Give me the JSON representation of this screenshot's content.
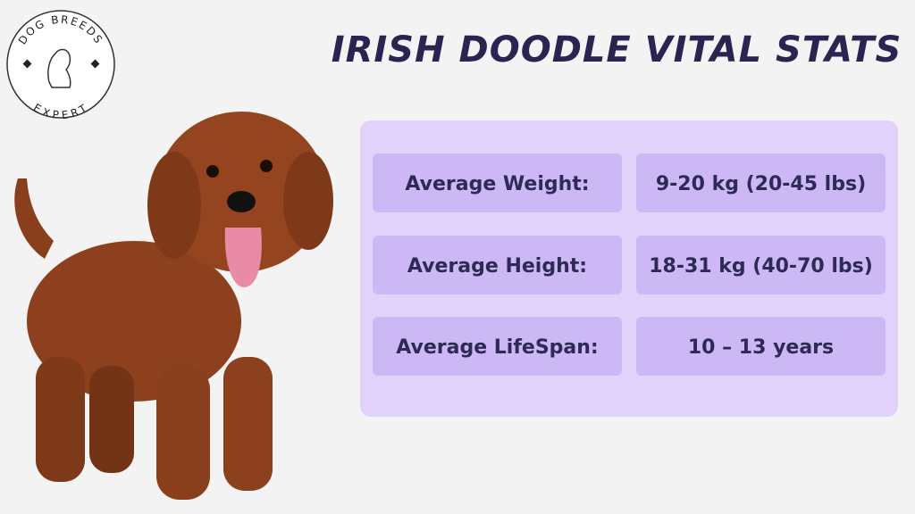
{
  "logo": {
    "top": "DOG BREEDS",
    "bottom": "EXPERT"
  },
  "title": "IRISH DOODLE VITAL STATS",
  "table": {
    "rows": [
      [
        "Average Weight:",
        "9-20 kg (20-45 lbs)"
      ],
      [
        "Average Height:",
        "18-31 kg (40-70 lbs)"
      ],
      [
        "Average LifeSpan:",
        "10 – 13 years"
      ]
    ]
  }
}
